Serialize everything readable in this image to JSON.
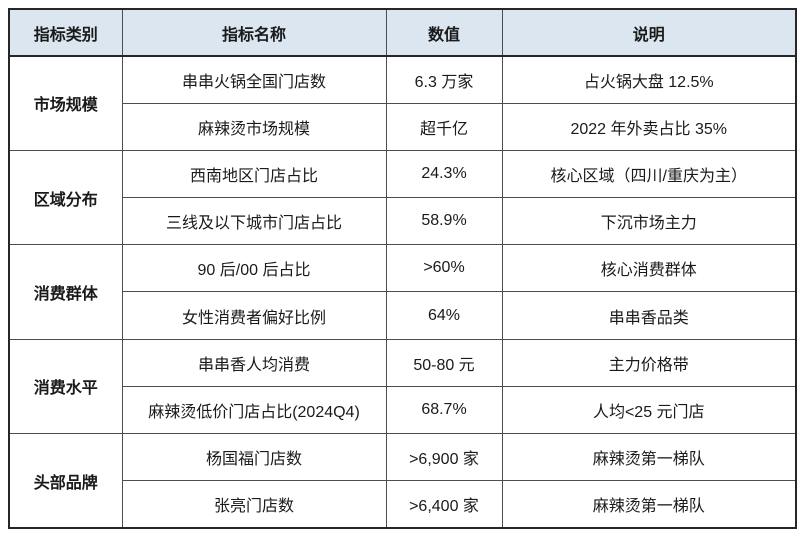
{
  "colors": {
    "header_bg": "#dce6f1",
    "border_inner": "#4d4d4d",
    "border_outer": "#262626",
    "text": "#1a1a1a",
    "page_bg": "#ffffff"
  },
  "table": {
    "headers": [
      "指标类别",
      "指标名称",
      "数值",
      "说明"
    ],
    "groups": [
      {
        "category": "市场规模",
        "rows": [
          {
            "name": "串串火锅全国门店数",
            "value": "6.3 万家",
            "note": "占火锅大盘 12.5%"
          },
          {
            "name": "麻辣烫市场规模",
            "value": "超千亿",
            "note": "2022 年外卖占比 35%"
          }
        ]
      },
      {
        "category": "区域分布",
        "rows": [
          {
            "name": "西南地区门店占比",
            "value": "24.3%",
            "note": "核心区域（四川/重庆为主）"
          },
          {
            "name": "三线及以下城市门店占比",
            "value": "58.9%",
            "note": "下沉市场主力"
          }
        ]
      },
      {
        "category": "消费群体",
        "rows": [
          {
            "name": "90 后/00 后占比",
            "value": ">60%",
            "note": "核心消费群体"
          },
          {
            "name": "女性消费者偏好比例",
            "value": "64%",
            "note": "串串香品类"
          }
        ]
      },
      {
        "category": "消费水平",
        "rows": [
          {
            "name": "串串香人均消费",
            "value": "50-80 元",
            "note": "主力价格带"
          },
          {
            "name": "麻辣烫低价门店占比(2024Q4)",
            "value": "68.7%",
            "note": "人均<25 元门店"
          }
        ]
      },
      {
        "category": "头部品牌",
        "rows": [
          {
            "name": "杨国福门店数",
            "value": ">6,900 家",
            "note": "麻辣烫第一梯队"
          },
          {
            "name": "张亮门店数",
            "value": ">6,400 家",
            "note": "麻辣烫第一梯队"
          }
        ]
      }
    ]
  }
}
